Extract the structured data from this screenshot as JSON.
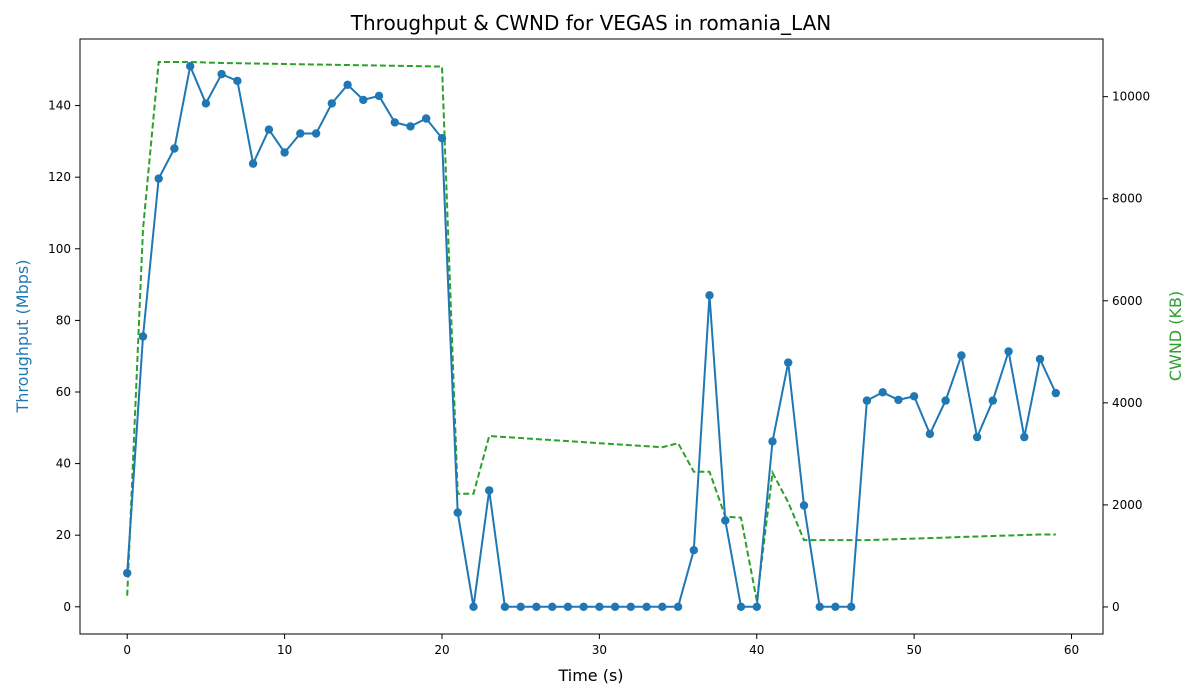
{
  "chart_data": {
    "type": "line",
    "title": "Throughput & CWND for VEGAS in romania_LAN",
    "xlabel": "Time (s)",
    "ylabel_left": "Throughput (Mbps)",
    "ylabel_right": "CWND (KB)",
    "xlim": [
      -3,
      62
    ],
    "ylim_left": [
      -7.6,
      158.6
    ],
    "ylim_right": [
      -530,
      11130
    ],
    "x_ticks": [
      0,
      10,
      20,
      30,
      40,
      50,
      60
    ],
    "y_left_ticks": [
      0,
      20,
      40,
      60,
      80,
      100,
      120,
      140
    ],
    "y_right_ticks": [
      0,
      2000,
      4000,
      6000,
      8000,
      10000
    ],
    "grid": false,
    "colors": {
      "throughput": "#1f77b4",
      "cwnd": "#2ca02c"
    },
    "series": [
      {
        "axis": "left",
        "style": "solid-markers",
        "x": [
          0,
          1,
          2,
          3,
          4,
          5,
          6,
          7,
          8,
          9,
          10,
          11,
          12,
          13,
          14,
          15,
          16,
          17,
          18,
          19,
          20,
          21,
          22,
          23,
          24,
          25,
          26,
          27,
          28,
          29,
          30,
          31,
          32,
          33,
          34,
          35,
          36,
          37,
          38,
          39,
          40,
          41,
          42,
          43,
          44,
          45,
          46,
          47,
          48,
          49,
          50,
          51,
          52,
          53,
          54,
          55,
          56,
          57,
          58,
          59
        ],
        "values": [
          9.4,
          75.5,
          119.6,
          128,
          151,
          140.6,
          148.8,
          146.9,
          123.8,
          133.3,
          126.9,
          132.2,
          132.2,
          140.6,
          145.8,
          141.6,
          142.7,
          135.3,
          134.2,
          136.4,
          130.9,
          26.3,
          0,
          32.5,
          0,
          0,
          0,
          0,
          0,
          0,
          0,
          0,
          0,
          0,
          0,
          0,
          15.8,
          87,
          24.1,
          0,
          0,
          46.2,
          68.2,
          28.3,
          0,
          0,
          0,
          57.6,
          59.9,
          57.8,
          58.8,
          48.3,
          57.6,
          70.2,
          47.4,
          57.6,
          71.3,
          47.4,
          69.2,
          59.7
        ]
      },
      {
        "axis": "right",
        "style": "dashed",
        "x": [
          0,
          1,
          2,
          3,
          4,
          5,
          6,
          7,
          8,
          9,
          10,
          11,
          12,
          13,
          14,
          15,
          16,
          17,
          18,
          19,
          20,
          21,
          22,
          23,
          24,
          25,
          26,
          27,
          28,
          29,
          30,
          31,
          32,
          33,
          34,
          35,
          36,
          37,
          38,
          39,
          40,
          41,
          42,
          43,
          44,
          45,
          46,
          47,
          48,
          49,
          50,
          51,
          52,
          53,
          54,
          55,
          56,
          57,
          58,
          59
        ],
        "values": [
          220,
          7400,
          10680,
          10680,
          10680,
          10670,
          10660,
          10655,
          10650,
          10645,
          10640,
          10635,
          10630,
          10625,
          10620,
          10615,
          10610,
          10605,
          10600,
          10595,
          10590,
          2220,
          2220,
          3350,
          3330,
          3310,
          3290,
          3270,
          3250,
          3230,
          3210,
          3190,
          3170,
          3150,
          3130,
          3210,
          2650,
          2650,
          1770,
          1750,
          120,
          2630,
          2050,
          1310,
          1310,
          1310,
          1310,
          1310,
          1320,
          1330,
          1340,
          1350,
          1360,
          1370,
          1380,
          1390,
          1400,
          1410,
          1420,
          1420
        ]
      }
    ]
  }
}
